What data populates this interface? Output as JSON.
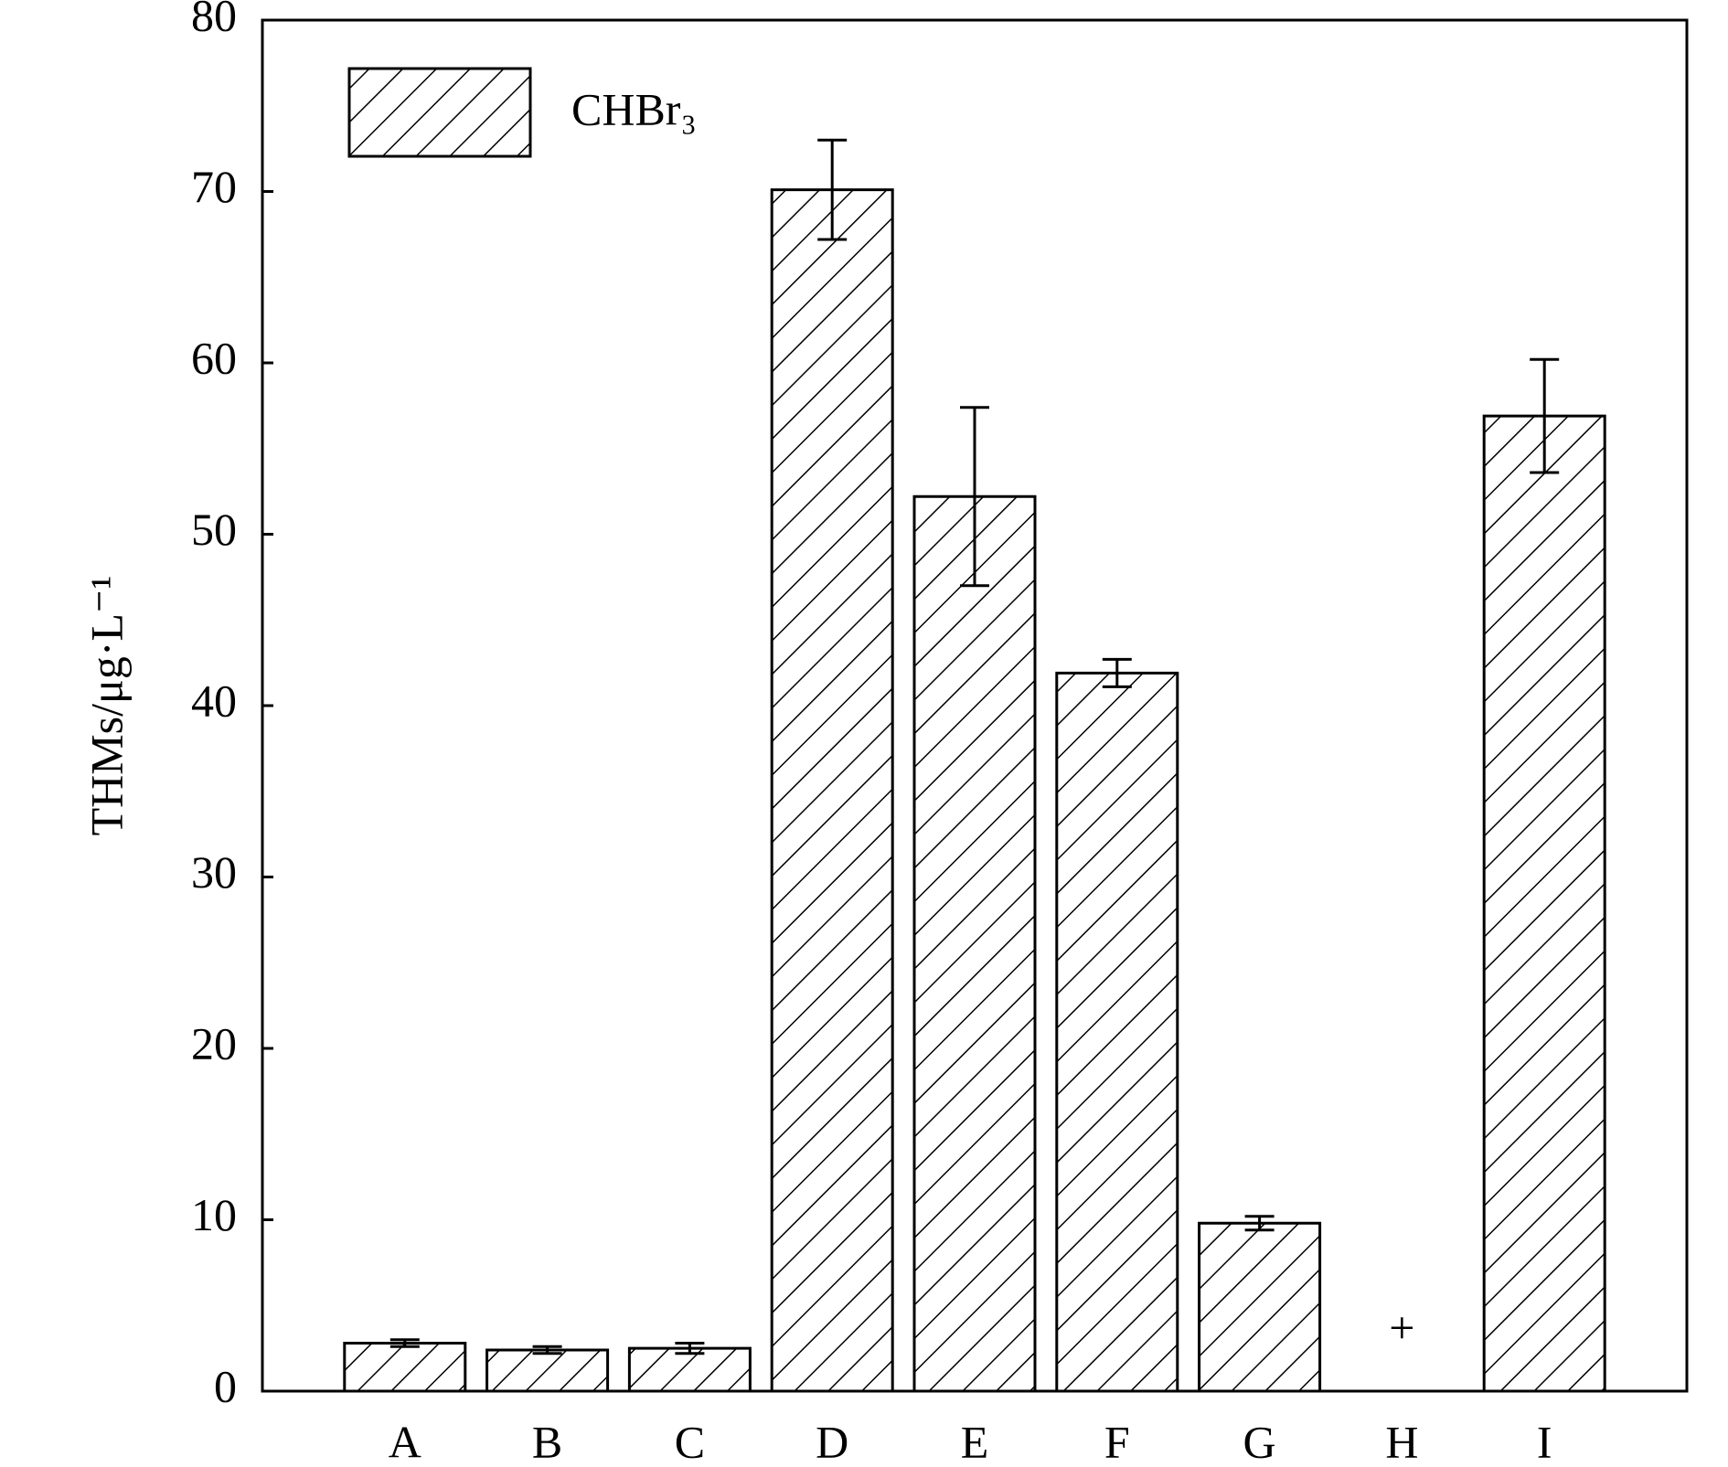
{
  "chart_data": {
    "type": "bar",
    "ylabel": "THMs/μg·L⁻¹",
    "categories": [
      "A",
      "B",
      "C",
      "D",
      "E",
      "F",
      "G",
      "H",
      "I"
    ],
    "series": [
      {
        "name": "CHBr₃",
        "color": "#000000",
        "values": [
          2.8,
          2.4,
          2.5,
          70.1,
          52.2,
          41.9,
          9.8,
          null,
          56.9
        ],
        "errors": [
          0.2,
          0.2,
          0.3,
          2.9,
          5.2,
          0.8,
          0.4,
          null,
          3.3
        ]
      }
    ],
    "annotations": [
      {
        "category": "H",
        "text": "+"
      }
    ],
    "ylim": [
      0,
      80
    ],
    "yticks": [
      0,
      10,
      20,
      30,
      40,
      50,
      60,
      70,
      80
    ],
    "hatch": "diagonal",
    "legend": "upper left"
  }
}
